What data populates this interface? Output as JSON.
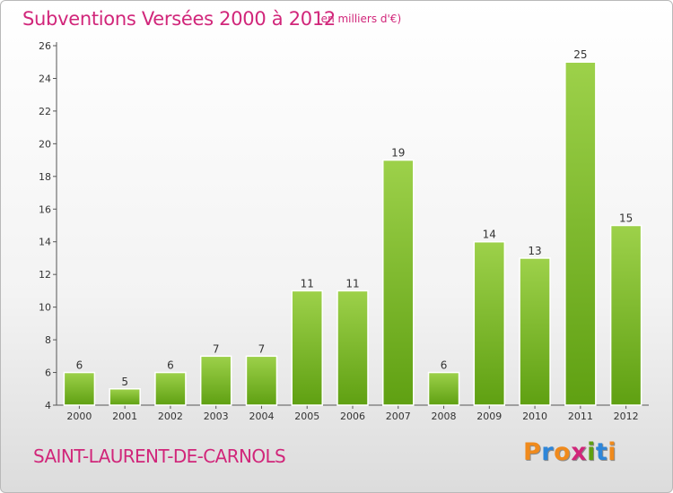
{
  "header": {
    "title": "Subventions Versées 2000 à 2012",
    "subtitle": "(en milliers d'€)"
  },
  "footer": {
    "commune": "SAINT-LAURENT-DE-CARNOLS",
    "logo_letters": [
      "P",
      "r",
      "o",
      "x",
      "i",
      "t",
      "i"
    ]
  },
  "colors": {
    "title": "#d1267a",
    "bar_top": "#9dd14a",
    "bar_bottom": "#5fa012",
    "logo": [
      "#f08a1c",
      "#2e86d9",
      "#f08a1c",
      "#d1267a",
      "#5fa012",
      "#2e86d9",
      "#f08a1c"
    ]
  },
  "chart_data": {
    "type": "bar",
    "title": "Subventions Versées 2000 à 2012",
    "subtitle": "(en milliers d'€)",
    "categories": [
      "2000",
      "2001",
      "2002",
      "2003",
      "2004",
      "2005",
      "2006",
      "2007",
      "2008",
      "2009",
      "2010",
      "2011",
      "2012"
    ],
    "values": [
      6,
      5,
      6,
      7,
      7,
      11,
      11,
      19,
      6,
      14,
      13,
      25,
      15
    ],
    "data_labels": [
      "6",
      "5",
      "6",
      "7",
      "7",
      "11",
      "11",
      "19",
      "6",
      "14",
      "13",
      "25",
      "15"
    ],
    "ylim": [
      4,
      26
    ],
    "yticks": [
      "4",
      "6",
      "8",
      "10",
      "12",
      "14",
      "16",
      "18",
      "20",
      "22",
      "24",
      "26"
    ],
    "grid": false,
    "legend": "none"
  }
}
